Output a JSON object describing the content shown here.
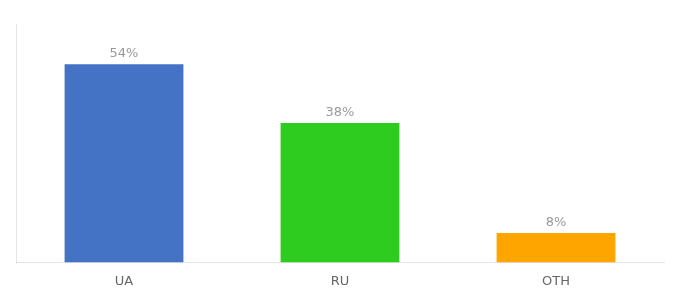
{
  "chart_data": {
    "type": "bar",
    "categories": [
      "UA",
      "RU",
      "OTH"
    ],
    "values": [
      54,
      38,
      8
    ],
    "value_labels": [
      "54%",
      "38%",
      "8%"
    ],
    "colors": [
      "#4472c4",
      "#2ecc1f",
      "#ffa500"
    ],
    "ylim": [
      0,
      65
    ],
    "data_labels": true,
    "tick_labels": "x",
    "grid": false
  }
}
